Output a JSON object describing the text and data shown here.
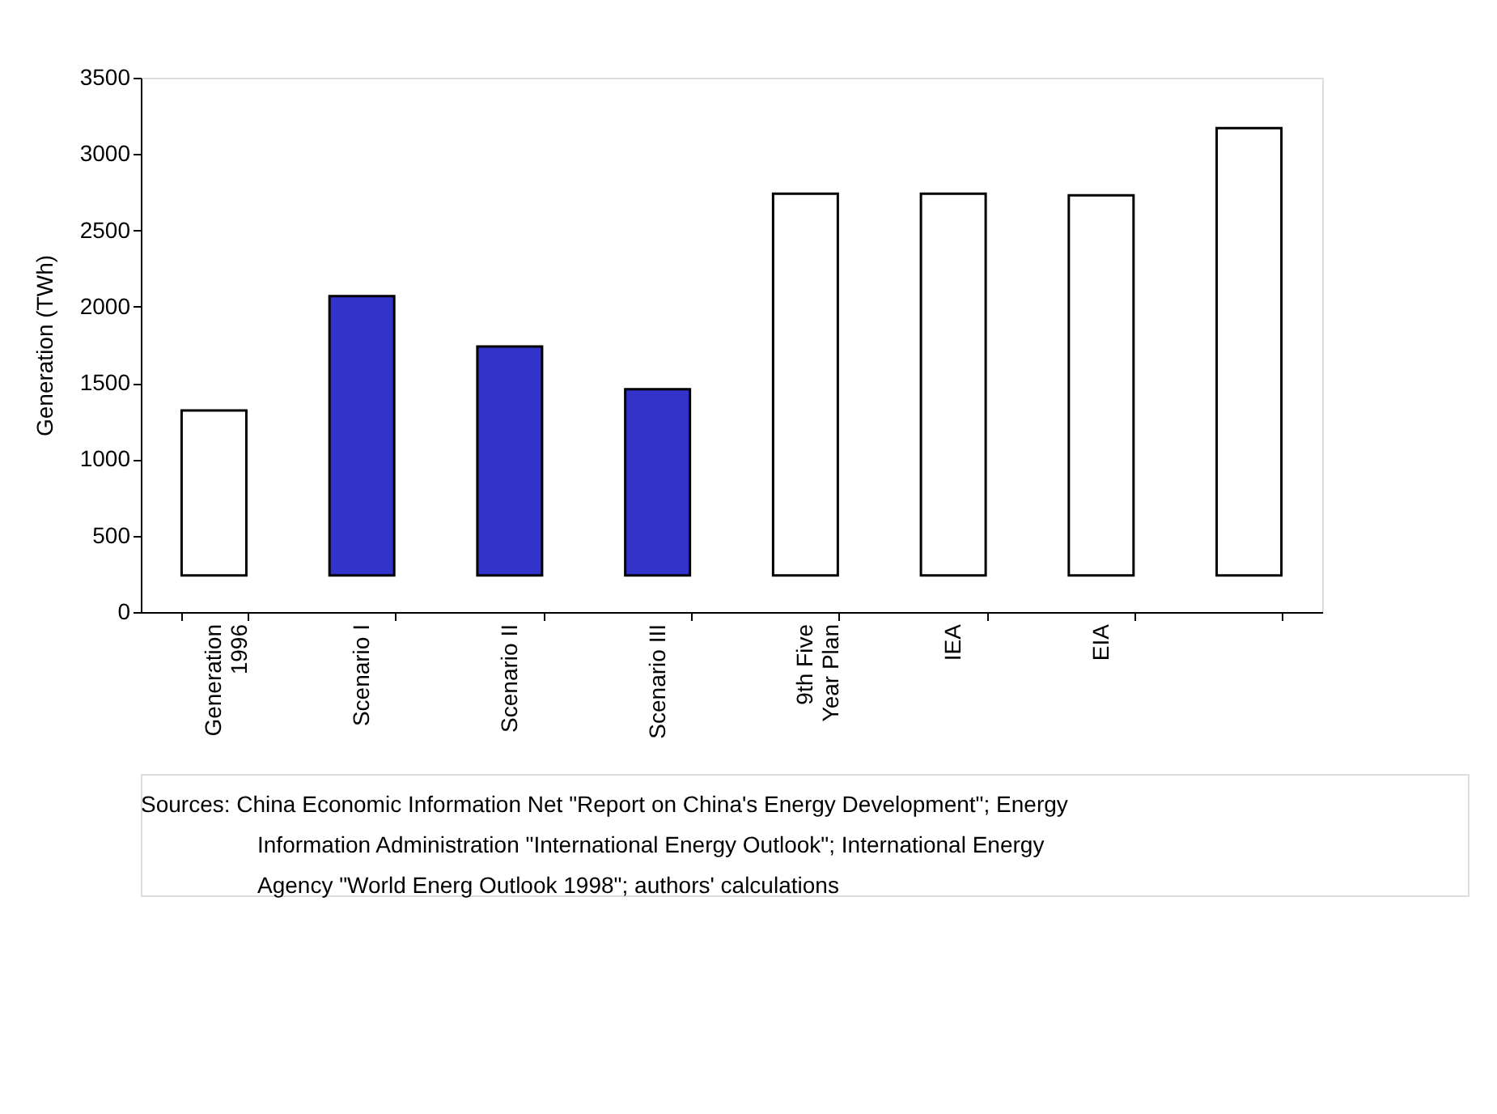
{
  "chart_data": {
    "type": "bar",
    "ylabel": "Generation (TWh)",
    "categories": [
      "Generation\n1996",
      "Scenario I",
      "Scenario II",
      "Scenario III",
      "9th Five\nYear Plan",
      "IEA",
      "EIA",
      null
    ],
    "values": [
      1080,
      1830,
      1500,
      1220,
      2500,
      2500,
      2490,
      2930
    ],
    "base": [
      240,
      240,
      240,
      240,
      240,
      240,
      240,
      240
    ],
    "colors": [
      "#ffffff",
      "#3333cc",
      "#3333cc",
      "#3333cc",
      "#ffffff",
      "#ffffff",
      "#ffffff",
      "#ffffff"
    ],
    "ylim": [
      0,
      3500
    ],
    "yticks": [
      0,
      500,
      1000,
      1500,
      2000,
      2500,
      3000,
      3500
    ],
    "grid": false,
    "annotations": [
      "Sources: China Economic Information Net \"Report on China's Energy Development\"; Energy\n            Information Administration \"International Energy Outlook\"; International Energy\n            Agency \"World Energ Outlook 1998\"; authors' calculations"
    ]
  }
}
